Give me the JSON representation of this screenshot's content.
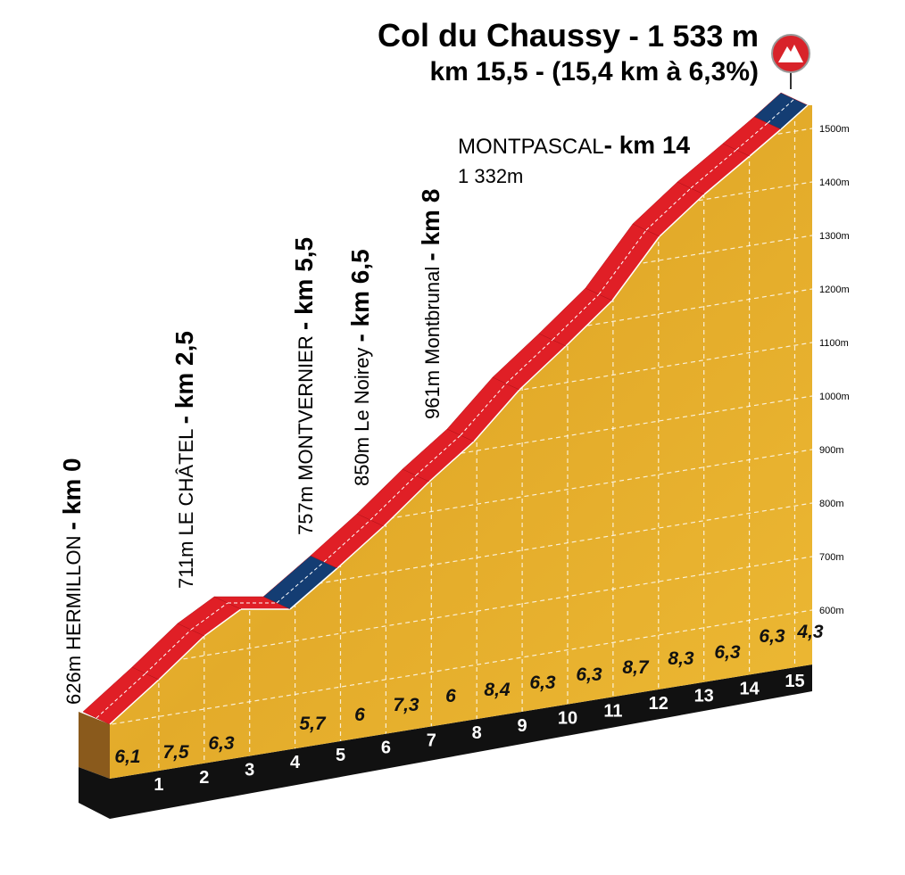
{
  "title_name": "Col du Chaussy",
  "title_altitude": "- 1 533 m",
  "subtitle": "km 15,5 - (15,4 km à 6,3%)",
  "elevation_labels": [
    "1500m",
    "1400m",
    "1300m",
    "1200m",
    "1100m",
    "1000m",
    "900m",
    "800m",
    "700m",
    "600m"
  ],
  "km_markers": [
    1,
    2,
    3,
    4,
    5,
    6,
    7,
    8,
    9,
    10,
    11,
    12,
    13,
    14,
    15
  ],
  "gradients": [
    "6,1",
    "7,5",
    "6,3",
    "5,7",
    "6",
    "7,3",
    "6",
    "8,4",
    "6,3",
    "6,3",
    "8,7",
    "8,3",
    "6,3",
    "6,3",
    "4,3"
  ],
  "waypoints": [
    {
      "altitude": "626m",
      "name": "HERMILLON",
      "km": "- km 0"
    },
    {
      "altitude": "711m",
      "name": "LE CHÂTEL",
      "km": "- km 2,5"
    },
    {
      "altitude": "757m",
      "name": "MONTVERNIER",
      "km": "- km 5,5"
    },
    {
      "altitude": "850m",
      "name": "Le Noirey",
      "km": "- km 6,5"
    },
    {
      "altitude": "961m",
      "name": "Montbrunal",
      "km": "- km 8"
    }
  ],
  "summit_waypoint": {
    "name": "MONTPASCAL",
    "km": "- km 14",
    "altitude": "1 332m"
  }
}
